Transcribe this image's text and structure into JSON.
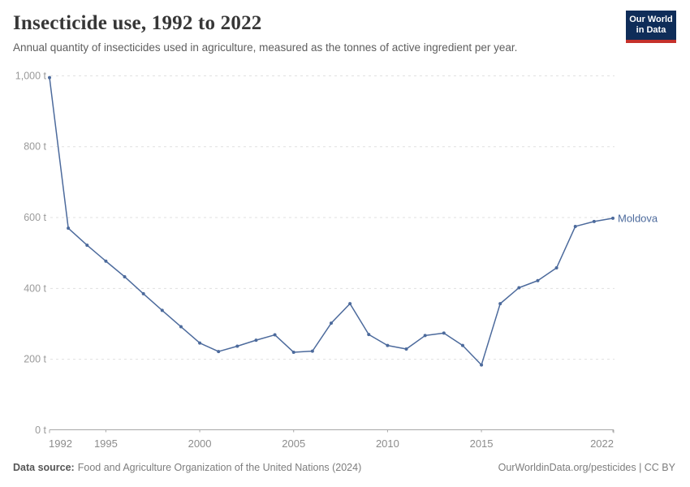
{
  "header": {
    "title": "Insecticide use, 1992 to 2022",
    "subtitle": "Annual quantity of insecticides used in agriculture, measured as the tonnes of active ingredient per year.",
    "logo": {
      "line1": "Our World",
      "line2": "in Data",
      "bg_color": "#0F2D59",
      "accent_color": "#C5312B"
    }
  },
  "chart_data": {
    "type": "line",
    "title": "Insecticide use, 1992 to 2022",
    "xlabel": "",
    "ylabel": "",
    "unit": "t",
    "grid": "horizontal-dashed",
    "legend_position": "end-of-line-label",
    "xlim": [
      1992,
      2022
    ],
    "ylim": [
      0,
      1000
    ],
    "x": [
      1992,
      1993,
      1994,
      1995,
      1996,
      1997,
      1998,
      1999,
      2000,
      2001,
      2002,
      2003,
      2004,
      2005,
      2006,
      2007,
      2008,
      2009,
      2010,
      2011,
      2012,
      2013,
      2014,
      2015,
      2016,
      2017,
      2018,
      2019,
      2020,
      2021,
      2022
    ],
    "series": [
      {
        "name": "Moldova",
        "color": "#4C6A9C",
        "values": [
          995,
          570,
          522,
          477,
          433,
          385,
          338,
          292,
          246,
          222,
          237,
          254,
          269,
          220,
          223,
          302,
          357,
          270,
          239,
          229,
          267,
          274,
          239,
          184,
          357,
          402,
          422,
          458,
          575,
          589,
          598
        ]
      }
    ],
    "x_ticks": [
      {
        "value": 1992,
        "label": "1992"
      },
      {
        "value": 1995,
        "label": "1995"
      },
      {
        "value": 2000,
        "label": "2000"
      },
      {
        "value": 2005,
        "label": "2005"
      },
      {
        "value": 2010,
        "label": "2010"
      },
      {
        "value": 2015,
        "label": "2015"
      },
      {
        "value": 2022,
        "label": "2022"
      }
    ],
    "y_ticks": [
      {
        "value": 0,
        "label": "0 t"
      },
      {
        "value": 200,
        "label": "200 t"
      },
      {
        "value": 400,
        "label": "400 t"
      },
      {
        "value": 600,
        "label": "600 t"
      },
      {
        "value": 800,
        "label": "800 t"
      },
      {
        "value": 1000,
        "label": "1,000 t"
      }
    ]
  },
  "footer": {
    "datasource_label": "Data source:",
    "datasource_text": "Food and Agriculture Organization of the United Nations (2024)",
    "right_text": "OurWorldinData.org/pesticides | CC BY"
  }
}
